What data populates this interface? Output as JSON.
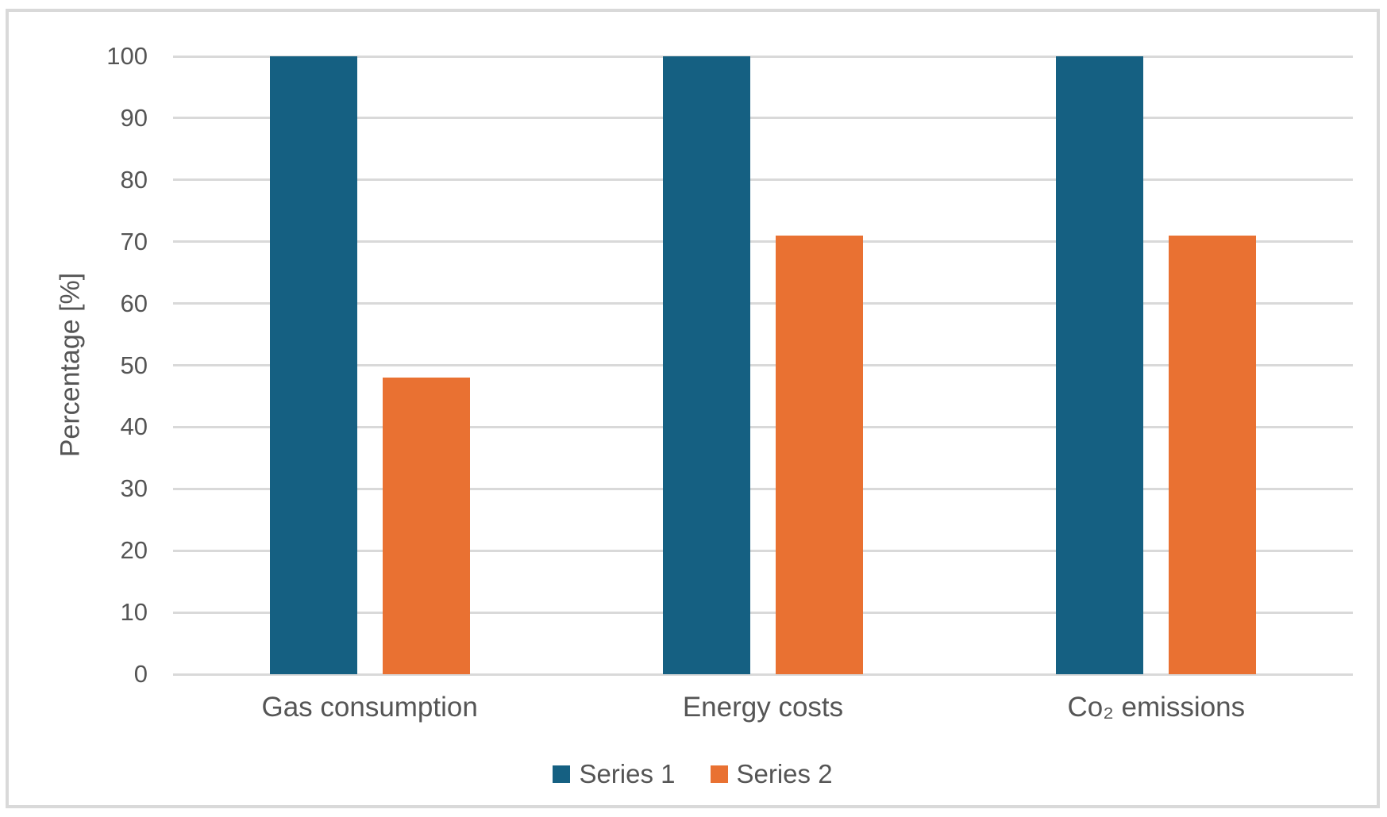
{
  "chart_data": {
    "type": "bar",
    "title": "",
    "categories": [
      "Gas consumption",
      "Energy costs",
      "Co₂ emissions"
    ],
    "series": [
      {
        "name": "Series 1",
        "color": "#156082",
        "values": [
          100,
          100,
          100
        ]
      },
      {
        "name": "Series 2",
        "color": "#E97132",
        "values": [
          48,
          71,
          71
        ]
      }
    ],
    "xlabel": "",
    "ylabel": "Percentage [%]",
    "ylim": [
      0,
      100
    ],
    "yticks": [
      0,
      10,
      20,
      30,
      40,
      50,
      60,
      70,
      80,
      90,
      100
    ],
    "grid": true,
    "legend_position": "bottom"
  },
  "colors": {
    "series1": "#156082",
    "series2": "#E97132",
    "gridline": "#D9D9D9",
    "text": "#555555",
    "frame_border": "#D9D9D9",
    "background": "#FFFFFF"
  }
}
